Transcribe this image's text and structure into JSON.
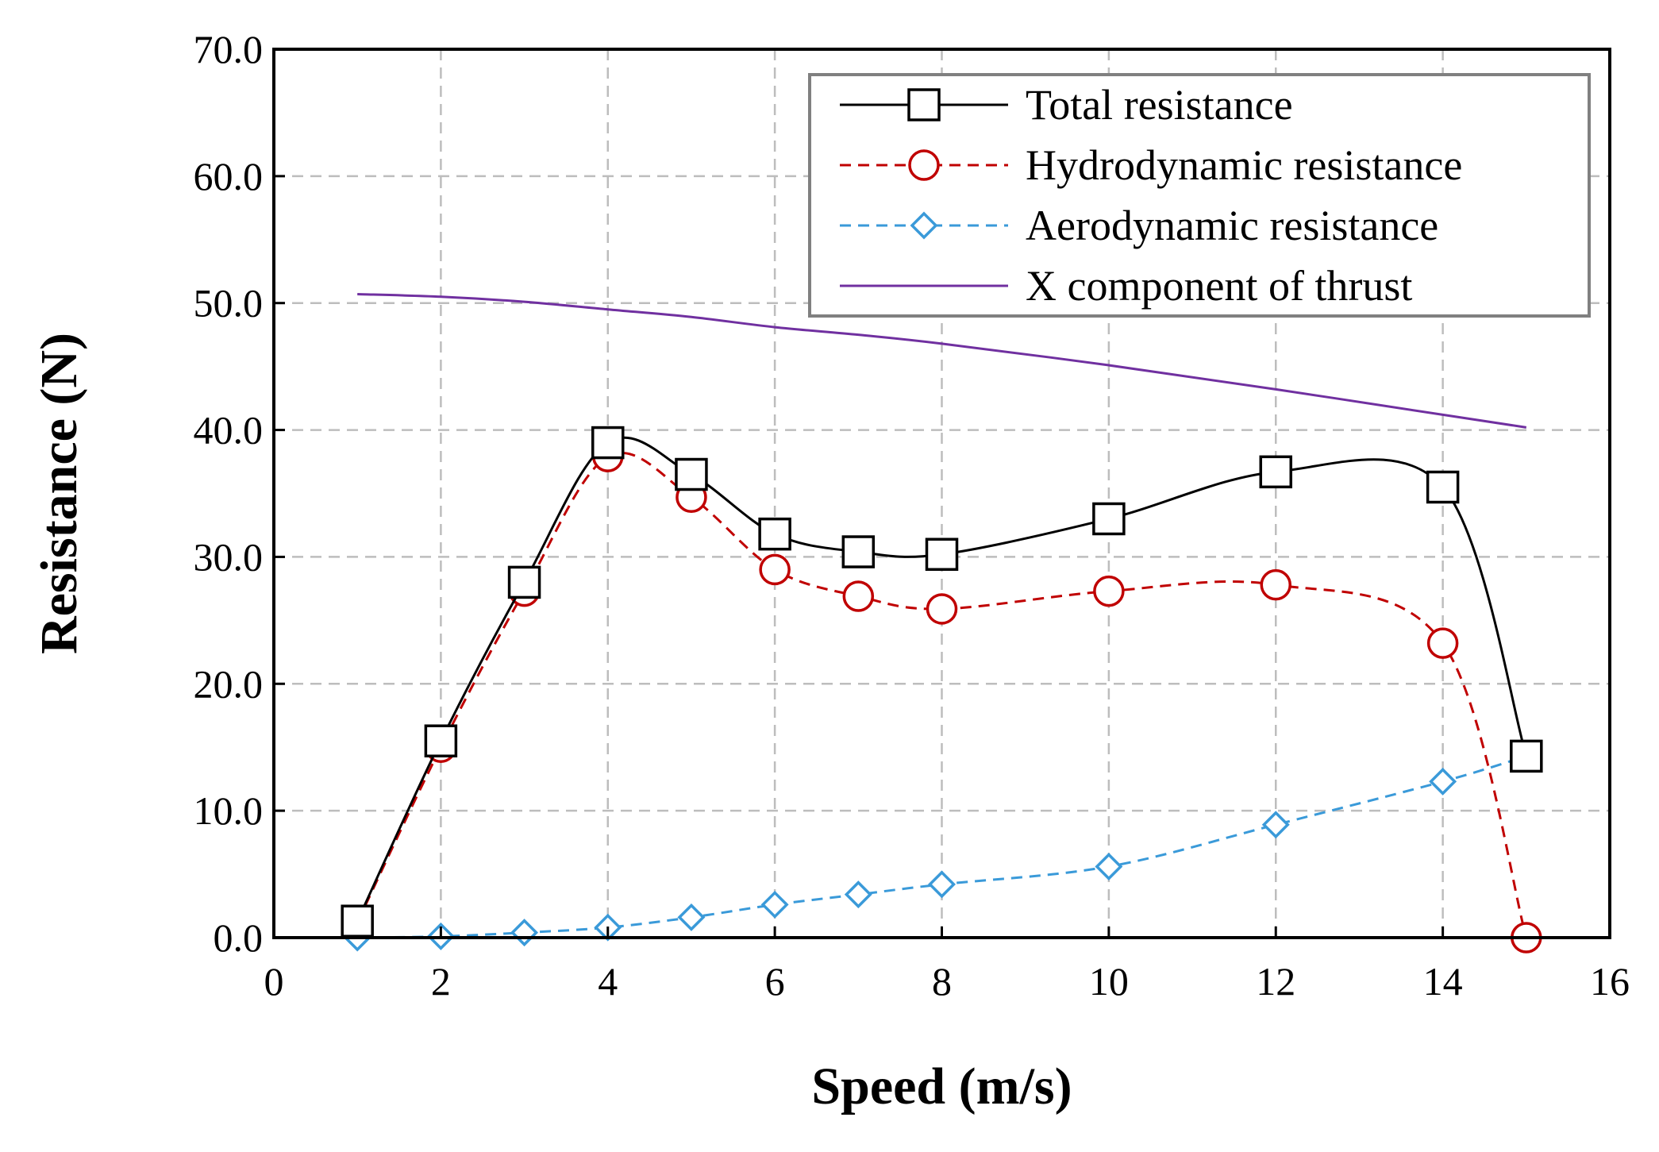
{
  "chart_data": {
    "type": "line",
    "xlabel": "Speed (m/s)",
    "ylabel": "Resistance (N)",
    "xlim": [
      0,
      16
    ],
    "ylim": [
      0,
      70
    ],
    "x_ticks": [
      "0",
      "2",
      "4",
      "6",
      "8",
      "10",
      "12",
      "14",
      "16"
    ],
    "y_ticks": [
      "0.0",
      "10.0",
      "20.0",
      "30.0",
      "40.0",
      "50.0",
      "60.0",
      "70.0"
    ],
    "grid": true,
    "legend_position": "top-right",
    "series": [
      {
        "name": "Total resistance",
        "color": "#000000",
        "line": "solid",
        "marker": "square",
        "smooth": true,
        "x": [
          1,
          2,
          3,
          4,
          5,
          6,
          7,
          8,
          10,
          12,
          14,
          15
        ],
        "y": [
          1.3,
          15.5,
          28.0,
          39.0,
          36.5,
          31.8,
          30.4,
          30.2,
          33.0,
          36.7,
          35.5,
          14.3
        ]
      },
      {
        "name": "Hydrodynamic resistance",
        "color": "#c00000",
        "line": "dashed",
        "marker": "circle",
        "smooth": true,
        "x": [
          1,
          2,
          3,
          4,
          5,
          6,
          7,
          8,
          10,
          12,
          14,
          15
        ],
        "y": [
          1.2,
          15.0,
          27.3,
          37.9,
          34.7,
          29.0,
          26.9,
          25.9,
          27.3,
          27.8,
          23.2,
          0.0
        ]
      },
      {
        "name": "Aerodynamic resistance",
        "color": "#3a9ad9",
        "line": "dashed",
        "marker": "diamond",
        "smooth": true,
        "x": [
          1,
          2,
          3,
          4,
          5,
          6,
          7,
          8,
          10,
          12,
          14,
          15
        ],
        "y": [
          0.0,
          0.1,
          0.4,
          0.8,
          1.6,
          2.6,
          3.4,
          4.2,
          5.6,
          8.9,
          12.3,
          14.3
        ]
      },
      {
        "name": "X component of thrust",
        "color": "#7030a0",
        "line": "solid",
        "marker": "none",
        "smooth": true,
        "x": [
          1,
          2,
          3,
          4,
          5,
          6,
          7,
          8,
          10,
          12,
          14,
          15
        ],
        "y": [
          50.7,
          50.5,
          50.1,
          49.5,
          48.9,
          48.1,
          47.5,
          46.8,
          45.1,
          43.2,
          41.2,
          40.2
        ]
      }
    ]
  }
}
